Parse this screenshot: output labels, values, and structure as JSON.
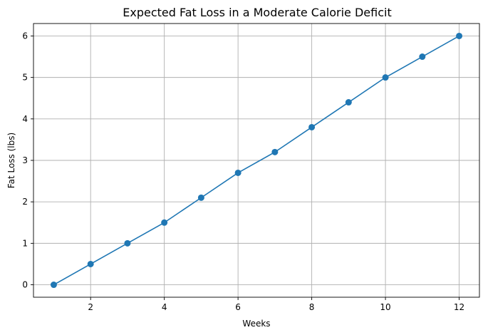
{
  "chart_data": {
    "type": "line",
    "title": "Expected Fat Loss in a Moderate Calorie Deficit",
    "xlabel": "Weeks",
    "ylabel": "Fat Loss (lbs)",
    "xlim": [
      0.45,
      12.55
    ],
    "ylim": [
      -0.3,
      6.3
    ],
    "xticks": [
      2,
      4,
      6,
      8,
      10,
      12
    ],
    "yticks": [
      0,
      1,
      2,
      3,
      4,
      5,
      6
    ],
    "grid": true,
    "legend": null,
    "series": [
      {
        "color": "#1f77b4",
        "marker": "circle",
        "x": [
          1,
          2,
          3,
          4,
          5,
          6,
          7,
          8,
          9,
          10,
          11,
          12
        ],
        "y": [
          0,
          0.5,
          1.0,
          1.5,
          2.1,
          2.7,
          3.2,
          3.8,
          4.4,
          5.0,
          5.5,
          6.0
        ]
      }
    ]
  }
}
